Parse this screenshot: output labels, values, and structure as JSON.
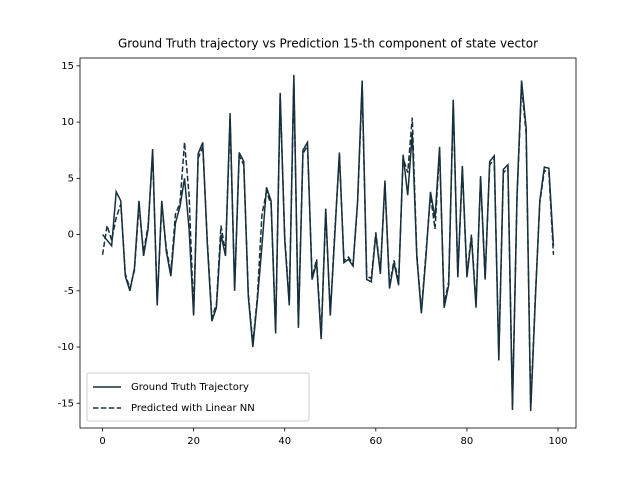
{
  "chart_data": {
    "type": "line",
    "title": "Ground Truth trajectory vs Prediction 15-th component of state vector",
    "x": [
      0,
      1,
      2,
      3,
      4,
      5,
      6,
      7,
      8,
      9,
      10,
      11,
      12,
      13,
      14,
      15,
      16,
      17,
      18,
      19,
      20,
      21,
      22,
      23,
      24,
      25,
      26,
      27,
      28,
      29,
      30,
      31,
      32,
      33,
      34,
      35,
      36,
      37,
      38,
      39,
      40,
      41,
      42,
      43,
      44,
      45,
      46,
      47,
      48,
      49,
      50,
      51,
      52,
      53,
      54,
      55,
      56,
      57,
      58,
      59,
      60,
      61,
      62,
      63,
      64,
      65,
      66,
      67,
      68,
      69,
      70,
      71,
      72,
      73,
      74,
      75,
      76,
      77,
      78,
      79,
      80,
      81,
      82,
      83,
      84,
      85,
      86,
      87,
      88,
      89,
      90,
      91,
      92,
      93,
      94,
      95,
      96,
      97,
      98,
      99
    ],
    "series": [
      {
        "name": "Ground Truth Trajectory",
        "color": "#17303c",
        "dash": "solid",
        "values": [
          0.0,
          -0.5,
          -1.0,
          3.8,
          3.0,
          -3.7,
          -5.0,
          -3.0,
          3.0,
          -1.9,
          0.5,
          7.6,
          -6.3,
          3.0,
          -1.5,
          -3.7,
          1.0,
          2.5,
          5.0,
          0.5,
          -7.2,
          7.2,
          8.2,
          -0.8,
          -7.7,
          -6.5,
          0.0,
          -1.9,
          10.8,
          -5.0,
          7.3,
          6.5,
          -5.5,
          -10.0,
          -5.8,
          -1.0,
          4.2,
          3.0,
          -8.8,
          12.6,
          -0.5,
          -6.3,
          14.2,
          -8.3,
          7.5,
          8.2,
          -4.0,
          -2.5,
          -9.3,
          2.3,
          -7.2,
          0.0,
          7.3,
          -2.5,
          -2.2,
          -2.8,
          3.0,
          13.7,
          -4.0,
          -4.2,
          0.0,
          -3.5,
          4.8,
          -4.8,
          -2.5,
          -4.5,
          7.1,
          3.5,
          9.0,
          -2.0,
          -7.0,
          -2.0,
          3.8,
          1.5,
          7.8,
          -6.5,
          -4.5,
          12.0,
          -3.8,
          6.1,
          -3.8,
          -0.2,
          -6.5,
          5.2,
          -4.0,
          6.5,
          7.0,
          -11.2,
          5.8,
          6.2,
          -15.6,
          3.5,
          13.7,
          9.5,
          -15.7,
          -6.0,
          3.0,
          6.0,
          5.9,
          -1.0
        ]
      },
      {
        "name": "Predicted with Linear NN",
        "color": "#17303c",
        "dash": "dashed",
        "values": [
          -1.8,
          0.8,
          -0.5,
          1.5,
          2.7,
          -3.5,
          -4.8,
          -3.2,
          2.6,
          -1.6,
          0.8,
          7.2,
          -6.0,
          2.6,
          -1.2,
          -3.4,
          1.8,
          2.8,
          8.2,
          3.5,
          -7.0,
          6.8,
          7.8,
          -0.5,
          -7.4,
          -6.2,
          0.8,
          -1.6,
          10.2,
          -4.7,
          7.0,
          6.2,
          -5.2,
          -9.7,
          -5.5,
          1.8,
          3.8,
          2.7,
          -8.5,
          12.2,
          -0.2,
          -6.0,
          13.6,
          -8.0,
          7.2,
          7.9,
          -3.8,
          -2.2,
          -9.0,
          2.0,
          -7.0,
          0.3,
          7.0,
          -2.3,
          -2.0,
          -2.6,
          2.8,
          13.2,
          -3.7,
          -3.9,
          0.2,
          -3.2,
          4.5,
          -4.5,
          -2.3,
          -4.2,
          6.8,
          5.5,
          10.4,
          -1.8,
          -6.8,
          -1.7,
          3.5,
          0.5,
          7.5,
          -6.2,
          -4.2,
          11.5,
          -3.5,
          5.8,
          -3.5,
          0.0,
          -6.2,
          5.0,
          -3.8,
          6.2,
          6.7,
          -10.8,
          5.5,
          5.9,
          -15.2,
          3.2,
          13.2,
          9.0,
          -15.4,
          -5.7,
          2.8,
          5.7,
          5.5,
          -1.8
        ]
      }
    ],
    "xlim": [
      -4.95,
      103.95
    ],
    "ylim": [
      -17.2,
      15.7
    ],
    "xticks": [
      0,
      20,
      40,
      60,
      80,
      100
    ],
    "yticks": [
      -15,
      -10,
      -5,
      0,
      5,
      10,
      15
    ],
    "legend": "lower left"
  }
}
